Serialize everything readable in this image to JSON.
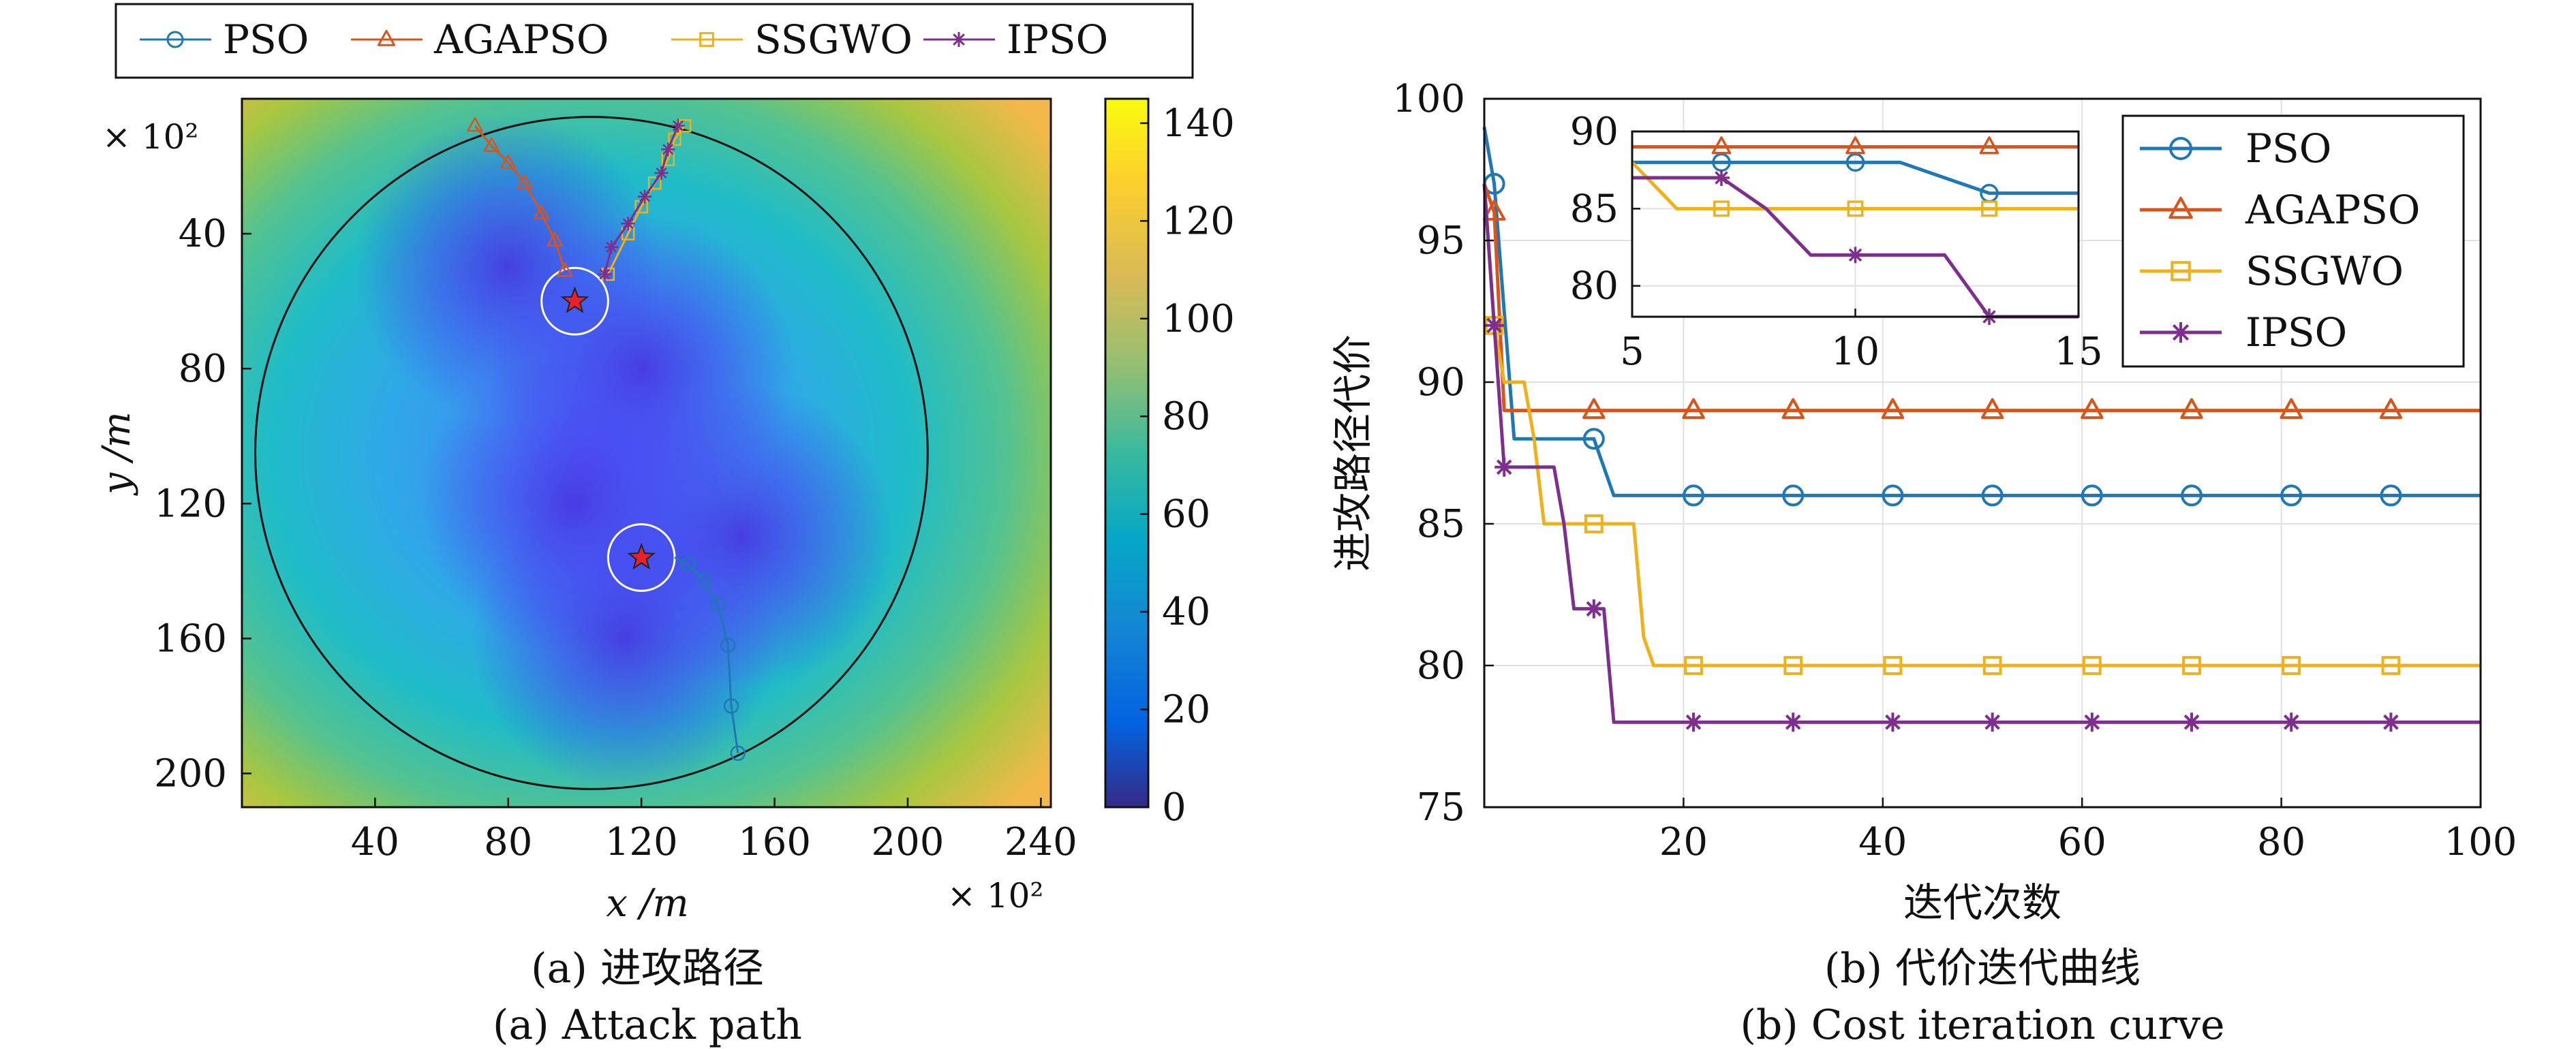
{
  "colors": {
    "PSO": "#1f77b4",
    "AGAPSO": "#d9541a",
    "SSGWO": "#eeb11c",
    "IPSO": "#7e2f8e",
    "star": "#e8202a"
  },
  "legend_top": {
    "entries": [
      {
        "name": "PSO",
        "marker": "circle"
      },
      {
        "name": "AGAPSO",
        "marker": "triangle"
      },
      {
        "name": "SSGWO",
        "marker": "square"
      },
      {
        "name": "IPSO",
        "marker": "asterisk"
      }
    ]
  },
  "panel_a": {
    "caption_cn": "(a) 进攻路径",
    "caption_en": "(a) Attack path",
    "xlabel": "x /m",
    "ylabel": "y /m",
    "x_multiplier": "× 10²",
    "y_multiplier": "× 10²",
    "x_ticks": [
      "40",
      "80",
      "120",
      "160",
      "200",
      "240"
    ],
    "y_ticks": [
      "40",
      "80",
      "120",
      "160",
      "200"
    ],
    "colorbar_ticks": [
      "0",
      "20",
      "40",
      "60",
      "80",
      "100",
      "120",
      "140"
    ],
    "colormap": "parula",
    "yaxis_direction": "reversed"
  },
  "panel_b": {
    "caption_cn": "(b) 代价迭代曲线",
    "caption_en": "(b) Cost iteration curve",
    "xlabel": "迭代次数",
    "ylabel": "进攻路径代价",
    "x_ticks": [
      "20",
      "40",
      "60",
      "80",
      "100"
    ],
    "y_ticks": [
      "75",
      "80",
      "85",
      "90",
      "95",
      "100"
    ],
    "inset_x_ticks": [
      "5",
      "10",
      "15"
    ],
    "inset_y_ticks": [
      "80",
      "85",
      "90"
    ],
    "legend": [
      "PSO",
      "AGAPSO",
      "SSGWO",
      "IPSO"
    ]
  },
  "chart_data": [
    {
      "type": "heatmap",
      "panel": "a",
      "x_unit_multiplier": 100,
      "y_unit_multiplier": 100,
      "xlim": [
        0,
        243
      ],
      "ylim": [
        0,
        210
      ],
      "colorbar_range": [
        0,
        145
      ],
      "valleys": [
        {
          "x": 80,
          "y": 50
        },
        {
          "x": 120,
          "y": 80
        },
        {
          "x": 100,
          "y": 120
        },
        {
          "x": 150,
          "y": 130
        },
        {
          "x": 115,
          "y": 160
        }
      ],
      "circle": {
        "center": [
          105,
          105
        ],
        "radius": 101
      },
      "targets": [
        {
          "x": 100,
          "y": 60,
          "ring_radius": 10
        },
        {
          "x": 120,
          "y": 136,
          "ring_radius": 10
        }
      ],
      "series": [
        {
          "name": "PSO",
          "points": [
            [
              149,
              194
            ],
            [
              147,
              180
            ],
            [
              146,
              162
            ],
            [
              143,
              150
            ],
            [
              139,
              143
            ],
            [
              134,
              138
            ],
            [
              130,
              136
            ]
          ]
        },
        {
          "name": "AGAPSO",
          "points": [
            [
              70,
              8
            ],
            [
              75,
              14
            ],
            [
              80,
              19
            ],
            [
              85,
              25
            ],
            [
              90,
              34
            ],
            [
              94,
              42
            ],
            [
              97,
              51
            ]
          ]
        },
        {
          "name": "SSGWO",
          "points": [
            [
              133,
              8
            ],
            [
              130,
              12
            ],
            [
              128,
              18
            ],
            [
              124,
              25
            ],
            [
              120,
              32
            ],
            [
              116,
              40
            ],
            [
              110,
              52
            ]
          ]
        },
        {
          "name": "IPSO",
          "points": [
            [
              131,
              8
            ],
            [
              128,
              15
            ],
            [
              126,
              22
            ],
            [
              121,
              29
            ],
            [
              116,
              37
            ],
            [
              111,
              44
            ],
            [
              109,
              52
            ]
          ]
        }
      ]
    },
    {
      "type": "line",
      "panel": "b",
      "xlabel": "迭代次数",
      "ylabel": "进攻路径代价",
      "xlim": [
        0,
        100
      ],
      "ylim": [
        75,
        100
      ],
      "series": [
        {
          "name": "PSO",
          "x": [
            0,
            1,
            3,
            11,
            12,
            13,
            100
          ],
          "y": [
            99,
            97,
            88,
            88,
            87,
            86,
            86
          ],
          "marker_x": [
            1,
            11,
            21,
            31,
            41,
            51,
            61,
            71,
            81,
            91
          ]
        },
        {
          "name": "AGAPSO",
          "x": [
            0,
            1,
            2,
            100
          ],
          "y": [
            97,
            96,
            89,
            89
          ],
          "marker_x": [
            1,
            11,
            21,
            31,
            41,
            51,
            61,
            71,
            81,
            91
          ]
        },
        {
          "name": "SSGWO",
          "x": [
            0,
            1,
            2,
            4,
            5,
            6,
            10,
            11,
            15,
            16,
            17,
            100
          ],
          "y": [
            97,
            92,
            90,
            90,
            88,
            85,
            85,
            85,
            85,
            81,
            80,
            80
          ],
          "marker_x": [
            1,
            11,
            21,
            31,
            41,
            51,
            61,
            71,
            81,
            91
          ]
        },
        {
          "name": "IPSO",
          "x": [
            0,
            1,
            2,
            3,
            7,
            8,
            9,
            12,
            13,
            100
          ],
          "y": [
            97,
            92,
            87,
            87,
            87,
            85,
            82,
            82,
            78,
            78
          ],
          "marker_x": [
            1,
            2,
            11,
            21,
            31,
            41,
            51,
            61,
            71,
            81,
            91
          ]
        }
      ],
      "inset": {
        "xlim": [
          5,
          15
        ],
        "ylim": [
          78,
          90
        ],
        "marker_x": [
          7,
          10,
          13
        ]
      }
    }
  ]
}
